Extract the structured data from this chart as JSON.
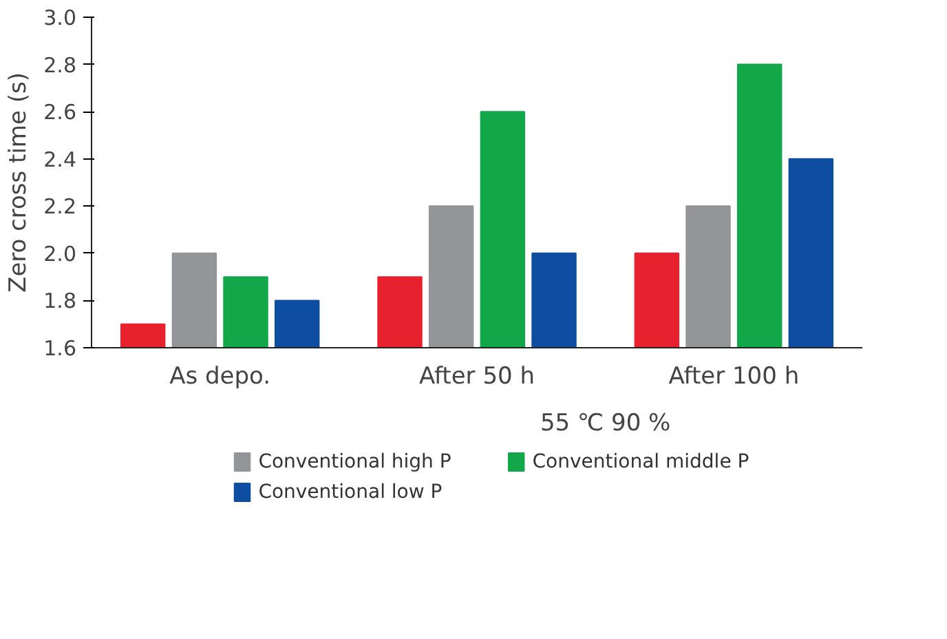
{
  "chart_data": {
    "type": "bar",
    "ylabel": "Zero cross time (s)",
    "categories": [
      "As depo.",
      "After 50 h",
      "After 100 h"
    ],
    "series": [
      {
        "color": "#e8212e",
        "values": [
          1.7,
          1.9,
          2.0
        ]
      },
      {
        "name": "Conventional high P",
        "color": "#939598",
        "values": [
          2.0,
          2.2,
          2.2
        ]
      },
      {
        "name": "Conventional middle P",
        "color": "#12a84a",
        "values": [
          1.9,
          2.6,
          2.8
        ]
      },
      {
        "name": "Conventional low P",
        "color": "#0d4ea1",
        "values": [
          1.8,
          2.0,
          2.4
        ]
      }
    ],
    "ylim": [
      1.6,
      3.0
    ],
    "yticks": [
      1.6,
      1.8,
      {
        "value": 2.0,
        "label": "2.0"
      },
      2.2,
      2.4,
      2.6,
      2.8,
      {
        "value": 3.0,
        "label": "3.0"
      }
    ],
    "annotations": [
      "55 ℃ 90 %"
    ],
    "grid": false,
    "legend": "bottom"
  }
}
